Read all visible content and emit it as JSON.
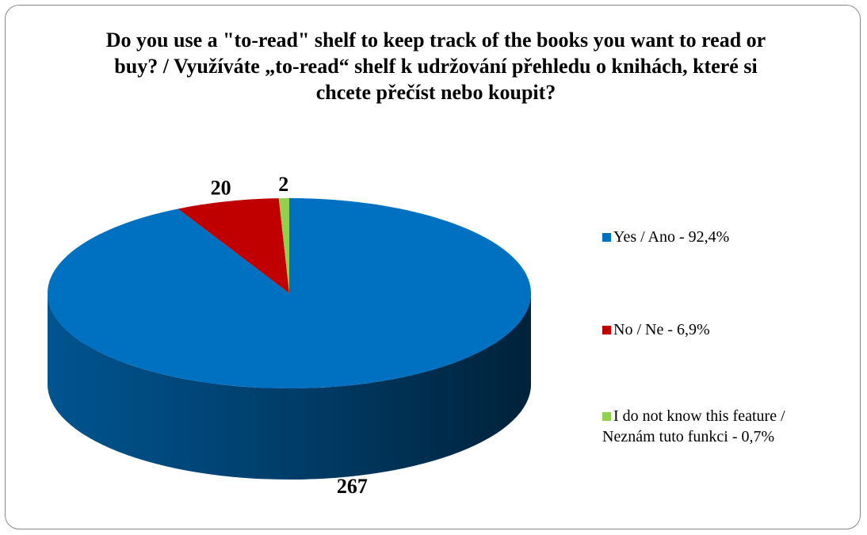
{
  "chart_data": {
    "type": "pie",
    "title": "Do you use a \"to-read\" shelf to keep track of the books you want to read or buy? / Využíváte „to-read“ shelf k udržování přehledu o knihách, které si chcete přečíst nebo koupit?",
    "series": [
      {
        "name": "Yes / Ano - 92,4%",
        "color": "#0070c0"
      },
      {
        "name": "No / Ne - 6,9%",
        "color": "#c00000"
      },
      {
        "name": "I do not know this feature / Neznám tuto funkci - 0,7%",
        "color": "#92d050"
      }
    ],
    "values": [
      267,
      20,
      2
    ],
    "legend": "right"
  }
}
